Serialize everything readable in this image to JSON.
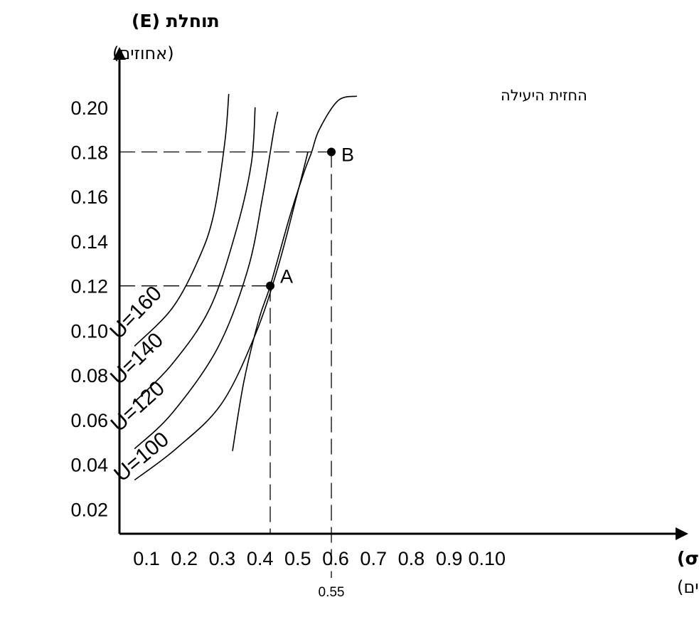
{
  "chart_data": {
    "type": "line",
    "title": "",
    "y_axis": {
      "title": "תוחלת (E)",
      "unit": "(אחוזים)",
      "ticks": [
        "0.02",
        "0.04",
        "0.06",
        "0.08",
        "0.10",
        "0.12",
        "0.14",
        "0.16",
        "0.18",
        "0.20"
      ],
      "range": [
        0,
        0.2
      ]
    },
    "x_axis": {
      "title": "סיכון (σ)",
      "unit": "(אחוזים)",
      "ticks": [
        "0.1",
        "0.2",
        "0.3",
        "0.4",
        "0.5",
        "0.6",
        "0.7",
        "0.8",
        "0.9",
        "0.10"
      ],
      "extra_tick": "0.55"
    },
    "indifference_curves": [
      {
        "name": "U=160",
        "points": [
          [
            0.04,
            0.093
          ],
          [
            0.14,
            0.11
          ],
          [
            0.21,
            0.132
          ],
          [
            0.25,
            0.152
          ],
          [
            0.28,
            0.185
          ],
          [
            0.29,
            0.206
          ]
        ]
      },
      {
        "name": "U=140",
        "points": [
          [
            0.04,
            0.068
          ],
          [
            0.14,
            0.085
          ],
          [
            0.24,
            0.11
          ],
          [
            0.31,
            0.145
          ],
          [
            0.35,
            0.175
          ],
          [
            0.36,
            0.2
          ]
        ]
      },
      {
        "name": "U=120",
        "points": [
          [
            0.04,
            0.047
          ],
          [
            0.14,
            0.063
          ],
          [
            0.26,
            0.092
          ],
          [
            0.34,
            0.127
          ],
          [
            0.38,
            0.16
          ],
          [
            0.41,
            0.19
          ],
          [
            0.42,
            0.198
          ]
        ]
      },
      {
        "name": "U=100",
        "points": [
          [
            0.04,
            0.033
          ],
          [
            0.15,
            0.047
          ],
          [
            0.27,
            0.067
          ],
          [
            0.36,
            0.098
          ],
          [
            0.42,
            0.128
          ],
          [
            0.47,
            0.16
          ],
          [
            0.5,
            0.18
          ]
        ]
      }
    ],
    "efficient_frontier": {
      "name": "החזית היעילה",
      "points": [
        [
          0.3,
          0.046
        ],
        [
          0.33,
          0.077
        ],
        [
          0.37,
          0.105
        ],
        [
          0.4,
          0.12
        ],
        [
          0.45,
          0.15
        ],
        [
          0.49,
          0.171
        ],
        [
          0.51,
          0.18
        ],
        [
          0.53,
          0.19
        ],
        [
          0.58,
          0.203
        ],
        [
          0.63,
          0.205
        ]
      ]
    },
    "points": [
      {
        "name": "A",
        "x": 0.4,
        "y": 0.12
      },
      {
        "name": "B",
        "x": 0.55,
        "y": 0.18
      }
    ]
  }
}
